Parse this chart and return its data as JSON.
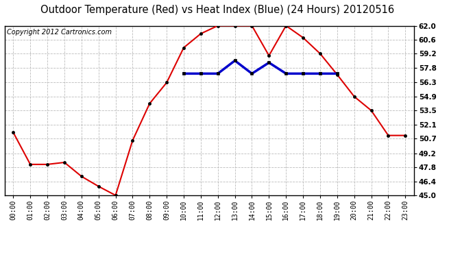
{
  "title": "Outdoor Temperature (Red) vs Heat Index (Blue) (24 Hours) 20120516",
  "copyright_text": "Copyright 2012 Cartronics.com",
  "x_labels": [
    "00:00",
    "01:00",
    "02:00",
    "03:00",
    "04:00",
    "05:00",
    "06:00",
    "07:00",
    "08:00",
    "09:00",
    "10:00",
    "11:00",
    "12:00",
    "13:00",
    "14:00",
    "15:00",
    "16:00",
    "17:00",
    "18:00",
    "19:00",
    "20:00",
    "21:00",
    "22:00",
    "23:00"
  ],
  "red_temps": [
    51.3,
    48.1,
    48.1,
    48.3,
    46.9,
    45.9,
    45.0,
    50.5,
    54.2,
    56.3,
    59.8,
    61.2,
    62.0,
    62.0,
    62.0,
    59.0,
    62.0,
    60.8,
    59.2,
    57.1,
    54.9,
    53.5,
    51.0,
    51.0
  ],
  "blue_temps": [
    null,
    null,
    null,
    null,
    null,
    null,
    null,
    null,
    null,
    null,
    57.2,
    57.2,
    57.2,
    58.5,
    57.2,
    58.3,
    57.2,
    57.2,
    57.2,
    57.2,
    null,
    null,
    null,
    null
  ],
  "ylim_min": 45.0,
  "ylim_max": 62.0,
  "ytick_values": [
    45.0,
    46.4,
    47.8,
    49.2,
    50.7,
    52.1,
    53.5,
    54.9,
    56.3,
    57.8,
    59.2,
    60.6,
    62.0
  ],
  "ytick_labels": [
    "45.0",
    "46.4",
    "47.8",
    "49.2",
    "50.7",
    "52.1",
    "53.5",
    "54.9",
    "56.3",
    "57.8",
    "59.2",
    "60.6",
    "62.0"
  ],
  "red_color": "#dd0000",
  "blue_color": "#0000cc",
  "bg_color": "#ffffff",
  "plot_bg_color": "#ffffff",
  "grid_color": "#bbbbbb",
  "title_fontsize": 10.5,
  "copyright_fontsize": 7,
  "tick_fontsize": 7.5,
  "xtick_fontsize": 7
}
